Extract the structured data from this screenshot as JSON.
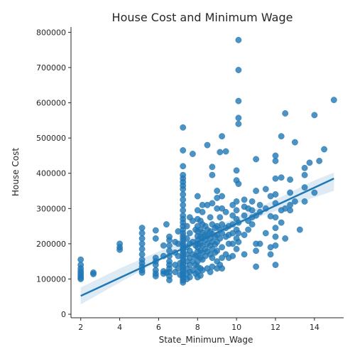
{
  "chart_data": {
    "type": "scatter",
    "title": "House Cost and Minimum Wage",
    "xlabel": "State_Minimum_Wage",
    "ylabel": "House Cost",
    "xlim": [
      1.5,
      15.5
    ],
    "ylim": [
      -10000,
      815000
    ],
    "xticks": [
      2,
      4,
      6,
      8,
      10,
      12,
      14
    ],
    "yticks": [
      0,
      100000,
      200000,
      300000,
      400000,
      500000,
      600000,
      700000,
      800000
    ],
    "grid": false,
    "legend": "none",
    "point_color": "#1f77b4",
    "regression_line": {
      "x": [
        2,
        15
      ],
      "y": [
        52000,
        385000
      ]
    },
    "confidence_band": {
      "x": [
        2,
        4,
        6,
        8,
        10,
        12,
        14,
        15
      ],
      "lower": [
        28000,
        90000,
        150000,
        207000,
        252000,
        293000,
        332000,
        350000
      ],
      "upper": [
        76000,
        130000,
        178000,
        226000,
        275000,
        325000,
        380000,
        402000
      ]
    },
    "points": [
      {
        "x": 2,
        "y": 155000
      },
      {
        "x": 2,
        "y": 140000
      },
      {
        "x": 2,
        "y": 130000
      },
      {
        "x": 2,
        "y": 122000
      },
      {
        "x": 2,
        "y": 116000
      },
      {
        "x": 2,
        "y": 110000
      },
      {
        "x": 2,
        "y": 104000
      },
      {
        "x": 2,
        "y": 100000
      },
      {
        "x": 2.65,
        "y": 118000
      },
      {
        "x": 2.65,
        "y": 114000
      },
      {
        "x": 4,
        "y": 200000
      },
      {
        "x": 4,
        "y": 190000
      },
      {
        "x": 4,
        "y": 183000
      },
      {
        "x": 5.15,
        "y": 245000
      },
      {
        "x": 5.15,
        "y": 230000
      },
      {
        "x": 5.15,
        "y": 215000
      },
      {
        "x": 5.15,
        "y": 200000
      },
      {
        "x": 5.15,
        "y": 185000
      },
      {
        "x": 5.15,
        "y": 170000
      },
      {
        "x": 5.15,
        "y": 155000
      },
      {
        "x": 5.15,
        "y": 145000
      },
      {
        "x": 5.15,
        "y": 135000
      },
      {
        "x": 5.15,
        "y": 125000
      },
      {
        "x": 5.15,
        "y": 118000
      },
      {
        "x": 5.85,
        "y": 238000
      },
      {
        "x": 5.85,
        "y": 215000
      },
      {
        "x": 5.85,
        "y": 160000
      },
      {
        "x": 5.85,
        "y": 150000
      },
      {
        "x": 5.85,
        "y": 140000
      },
      {
        "x": 5.85,
        "y": 125000
      },
      {
        "x": 5.85,
        "y": 115000
      },
      {
        "x": 5.85,
        "y": 108000
      },
      {
        "x": 6.25,
        "y": 195000
      },
      {
        "x": 6.25,
        "y": 165000
      },
      {
        "x": 6.25,
        "y": 122000
      },
      {
        "x": 6.25,
        "y": 115000
      },
      {
        "x": 6.4,
        "y": 255000
      },
      {
        "x": 6.4,
        "y": 118000
      },
      {
        "x": 6.55,
        "y": 220000
      },
      {
        "x": 6.55,
        "y": 210000
      },
      {
        "x": 6.55,
        "y": 195000
      },
      {
        "x": 6.55,
        "y": 180000
      },
      {
        "x": 6.55,
        "y": 165000
      },
      {
        "x": 6.55,
        "y": 150000
      },
      {
        "x": 6.55,
        "y": 140000
      },
      {
        "x": 6.55,
        "y": 130000
      },
      {
        "x": 6.55,
        "y": 120000
      },
      {
        "x": 6.55,
        "y": 108000
      },
      {
        "x": 6.55,
        "y": 97000
      },
      {
        "x": 6.85,
        "y": 205000
      },
      {
        "x": 6.85,
        "y": 175000
      },
      {
        "x": 6.85,
        "y": 140000
      },
      {
        "x": 6.85,
        "y": 120000
      },
      {
        "x": 7.0,
        "y": 235000
      },
      {
        "x": 7.0,
        "y": 200000
      },
      {
        "x": 7.0,
        "y": 165000
      },
      {
        "x": 7.0,
        "y": 130000
      },
      {
        "x": 7.1,
        "y": 145000
      },
      {
        "x": 7.1,
        "y": 112000
      },
      {
        "x": 7.25,
        "y": 530000
      },
      {
        "x": 7.25,
        "y": 465000
      },
      {
        "x": 7.25,
        "y": 420000
      },
      {
        "x": 7.25,
        "y": 395000
      },
      {
        "x": 7.25,
        "y": 385000
      },
      {
        "x": 7.25,
        "y": 375000
      },
      {
        "x": 7.25,
        "y": 365000
      },
      {
        "x": 7.25,
        "y": 355000
      },
      {
        "x": 7.25,
        "y": 340000
      },
      {
        "x": 7.25,
        "y": 325000
      },
      {
        "x": 7.25,
        "y": 310000
      },
      {
        "x": 7.25,
        "y": 295000
      },
      {
        "x": 7.25,
        "y": 280000
      },
      {
        "x": 7.25,
        "y": 270000
      },
      {
        "x": 7.25,
        "y": 260000
      },
      {
        "x": 7.25,
        "y": 250000
      },
      {
        "x": 7.25,
        "y": 240000
      },
      {
        "x": 7.25,
        "y": 230000
      },
      {
        "x": 7.25,
        "y": 222000
      },
      {
        "x": 7.25,
        "y": 215000
      },
      {
        "x": 7.25,
        "y": 208000
      },
      {
        "x": 7.25,
        "y": 200000
      },
      {
        "x": 7.25,
        "y": 193000
      },
      {
        "x": 7.25,
        "y": 186000
      },
      {
        "x": 7.25,
        "y": 180000
      },
      {
        "x": 7.25,
        "y": 173000
      },
      {
        "x": 7.25,
        "y": 166000
      },
      {
        "x": 7.25,
        "y": 160000
      },
      {
        "x": 7.25,
        "y": 153000
      },
      {
        "x": 7.25,
        "y": 146000
      },
      {
        "x": 7.25,
        "y": 140000
      },
      {
        "x": 7.25,
        "y": 133000
      },
      {
        "x": 7.25,
        "y": 126000
      },
      {
        "x": 7.25,
        "y": 120000
      },
      {
        "x": 7.25,
        "y": 114000
      },
      {
        "x": 7.25,
        "y": 108000
      },
      {
        "x": 7.25,
        "y": 102000
      },
      {
        "x": 7.25,
        "y": 96000
      },
      {
        "x": 7.25,
        "y": 90000
      },
      {
        "x": 7.45,
        "y": 250000
      },
      {
        "x": 7.45,
        "y": 215000
      },
      {
        "x": 7.45,
        "y": 190000
      },
      {
        "x": 7.45,
        "y": 170000
      },
      {
        "x": 7.45,
        "y": 150000
      },
      {
        "x": 7.45,
        "y": 130000
      },
      {
        "x": 7.45,
        "y": 115000
      },
      {
        "x": 7.45,
        "y": 100000
      },
      {
        "x": 7.6,
        "y": 275000
      },
      {
        "x": 7.6,
        "y": 230000
      },
      {
        "x": 7.6,
        "y": 200000
      },
      {
        "x": 7.6,
        "y": 180000
      },
      {
        "x": 7.6,
        "y": 160000
      },
      {
        "x": 7.6,
        "y": 140000
      },
      {
        "x": 7.6,
        "y": 120000
      },
      {
        "x": 7.6,
        "y": 105000
      },
      {
        "x": 7.75,
        "y": 455000
      },
      {
        "x": 7.75,
        "y": 265000
      },
      {
        "x": 7.75,
        "y": 205000
      },
      {
        "x": 7.75,
        "y": 170000
      },
      {
        "x": 7.75,
        "y": 150000
      },
      {
        "x": 7.75,
        "y": 125000
      },
      {
        "x": 7.9,
        "y": 240000
      },
      {
        "x": 7.9,
        "y": 195000
      },
      {
        "x": 7.9,
        "y": 165000
      },
      {
        "x": 7.9,
        "y": 140000
      },
      {
        "x": 7.9,
        "y": 115000
      },
      {
        "x": 8.0,
        "y": 335000
      },
      {
        "x": 8.0,
        "y": 295000
      },
      {
        "x": 8.0,
        "y": 270000
      },
      {
        "x": 8.0,
        "y": 250000
      },
      {
        "x": 8.0,
        "y": 235000
      },
      {
        "x": 8.0,
        "y": 222000
      },
      {
        "x": 8.0,
        "y": 210000
      },
      {
        "x": 8.0,
        "y": 200000
      },
      {
        "x": 8.0,
        "y": 190000
      },
      {
        "x": 8.0,
        "y": 178000
      },
      {
        "x": 8.0,
        "y": 165000
      },
      {
        "x": 8.0,
        "y": 150000
      },
      {
        "x": 8.0,
        "y": 135000
      },
      {
        "x": 8.0,
        "y": 120000
      },
      {
        "x": 8.0,
        "y": 105000
      },
      {
        "x": 8.15,
        "y": 265000
      },
      {
        "x": 8.15,
        "y": 240000
      },
      {
        "x": 8.15,
        "y": 220000
      },
      {
        "x": 8.15,
        "y": 200000
      },
      {
        "x": 8.15,
        "y": 180000
      },
      {
        "x": 8.15,
        "y": 160000
      },
      {
        "x": 8.15,
        "y": 130000
      },
      {
        "x": 8.15,
        "y": 110000
      },
      {
        "x": 8.25,
        "y": 310000
      },
      {
        "x": 8.25,
        "y": 290000
      },
      {
        "x": 8.25,
        "y": 255000
      },
      {
        "x": 8.25,
        "y": 232000
      },
      {
        "x": 8.25,
        "y": 215000
      },
      {
        "x": 8.25,
        "y": 195000
      },
      {
        "x": 8.25,
        "y": 175000
      },
      {
        "x": 8.25,
        "y": 155000
      },
      {
        "x": 8.25,
        "y": 125000
      },
      {
        "x": 8.4,
        "y": 250000
      },
      {
        "x": 8.4,
        "y": 225000
      },
      {
        "x": 8.4,
        "y": 210000
      },
      {
        "x": 8.4,
        "y": 185000
      },
      {
        "x": 8.4,
        "y": 165000
      },
      {
        "x": 8.5,
        "y": 480000
      },
      {
        "x": 8.5,
        "y": 310000
      },
      {
        "x": 8.5,
        "y": 240000
      },
      {
        "x": 8.5,
        "y": 222000
      },
      {
        "x": 8.5,
        "y": 200000
      },
      {
        "x": 8.5,
        "y": 178000
      },
      {
        "x": 8.5,
        "y": 130000
      },
      {
        "x": 8.65,
        "y": 275000
      },
      {
        "x": 8.65,
        "y": 235000
      },
      {
        "x": 8.65,
        "y": 215000
      },
      {
        "x": 8.65,
        "y": 195000
      },
      {
        "x": 8.65,
        "y": 170000
      },
      {
        "x": 8.65,
        "y": 120000
      },
      {
        "x": 8.75,
        "y": 418000
      },
      {
        "x": 8.75,
        "y": 395000
      },
      {
        "x": 8.75,
        "y": 315000
      },
      {
        "x": 8.75,
        "y": 255000
      },
      {
        "x": 8.75,
        "y": 228000
      },
      {
        "x": 8.75,
        "y": 205000
      },
      {
        "x": 8.75,
        "y": 185000
      },
      {
        "x": 8.75,
        "y": 160000
      },
      {
        "x": 8.75,
        "y": 135000
      },
      {
        "x": 8.9,
        "y": 245000
      },
      {
        "x": 8.9,
        "y": 220000
      },
      {
        "x": 8.9,
        "y": 198000
      },
      {
        "x": 8.9,
        "y": 175000
      },
      {
        "x": 9.0,
        "y": 350000
      },
      {
        "x": 9.0,
        "y": 330000
      },
      {
        "x": 9.0,
        "y": 300000
      },
      {
        "x": 9.0,
        "y": 250000
      },
      {
        "x": 9.0,
        "y": 225000
      },
      {
        "x": 9.0,
        "y": 205000
      },
      {
        "x": 9.0,
        "y": 180000
      },
      {
        "x": 9.0,
        "y": 150000
      },
      {
        "x": 9.0,
        "y": 130000
      },
      {
        "x": 9.15,
        "y": 460000
      },
      {
        "x": 9.15,
        "y": 275000
      },
      {
        "x": 9.15,
        "y": 240000
      },
      {
        "x": 9.15,
        "y": 215000
      },
      {
        "x": 9.15,
        "y": 140000
      },
      {
        "x": 9.25,
        "y": 505000
      },
      {
        "x": 9.25,
        "y": 335000
      },
      {
        "x": 9.25,
        "y": 300000
      },
      {
        "x": 9.25,
        "y": 255000
      },
      {
        "x": 9.25,
        "y": 230000
      },
      {
        "x": 9.25,
        "y": 190000
      },
      {
        "x": 9.25,
        "y": 160000
      },
      {
        "x": 9.25,
        "y": 130000
      },
      {
        "x": 9.45,
        "y": 462000
      },
      {
        "x": 9.45,
        "y": 290000
      },
      {
        "x": 9.45,
        "y": 245000
      },
      {
        "x": 9.45,
        "y": 220000
      },
      {
        "x": 9.45,
        "y": 170000
      },
      {
        "x": 9.6,
        "y": 250000
      },
      {
        "x": 9.6,
        "y": 225000
      },
      {
        "x": 9.6,
        "y": 200000
      },
      {
        "x": 9.6,
        "y": 160000
      },
      {
        "x": 9.8,
        "y": 310000
      },
      {
        "x": 9.8,
        "y": 280000
      },
      {
        "x": 9.8,
        "y": 255000
      },
      {
        "x": 9.8,
        "y": 230000
      },
      {
        "x": 9.8,
        "y": 200000
      },
      {
        "x": 9.8,
        "y": 165000
      },
      {
        "x": 10.0,
        "y": 408000
      },
      {
        "x": 10.0,
        "y": 380000
      },
      {
        "x": 10.0,
        "y": 320000
      },
      {
        "x": 10.0,
        "y": 295000
      },
      {
        "x": 10.0,
        "y": 270000
      },
      {
        "x": 10.0,
        "y": 240000
      },
      {
        "x": 10.0,
        "y": 215000
      },
      {
        "x": 10.0,
        "y": 185000
      },
      {
        "x": 10.1,
        "y": 778000
      },
      {
        "x": 10.1,
        "y": 693000
      },
      {
        "x": 10.1,
        "y": 605000
      },
      {
        "x": 10.1,
        "y": 557000
      },
      {
        "x": 10.1,
        "y": 540000
      },
      {
        "x": 10.1,
        "y": 370000
      },
      {
        "x": 10.1,
        "y": 260000
      },
      {
        "x": 10.1,
        "y": 230000
      },
      {
        "x": 10.1,
        "y": 205000
      },
      {
        "x": 10.4,
        "y": 325000
      },
      {
        "x": 10.4,
        "y": 305000
      },
      {
        "x": 10.4,
        "y": 280000
      },
      {
        "x": 10.4,
        "y": 225000
      },
      {
        "x": 10.4,
        "y": 170000
      },
      {
        "x": 10.6,
        "y": 300000
      },
      {
        "x": 10.6,
        "y": 265000
      },
      {
        "x": 10.6,
        "y": 240000
      },
      {
        "x": 10.8,
        "y": 320000
      },
      {
        "x": 10.8,
        "y": 295000
      },
      {
        "x": 10.8,
        "y": 275000
      },
      {
        "x": 10.8,
        "y": 255000
      },
      {
        "x": 11.0,
        "y": 440000
      },
      {
        "x": 11.0,
        "y": 350000
      },
      {
        "x": 11.0,
        "y": 280000
      },
      {
        "x": 11.0,
        "y": 200000
      },
      {
        "x": 11.0,
        "y": 180000
      },
      {
        "x": 11.0,
        "y": 135000
      },
      {
        "x": 11.2,
        "y": 310000
      },
      {
        "x": 11.2,
        "y": 290000
      },
      {
        "x": 11.2,
        "y": 200000
      },
      {
        "x": 11.5,
        "y": 355000
      },
      {
        "x": 11.5,
        "y": 300000
      },
      {
        "x": 11.5,
        "y": 230000
      },
      {
        "x": 11.75,
        "y": 335000
      },
      {
        "x": 11.75,
        "y": 278000
      },
      {
        "x": 11.75,
        "y": 190000
      },
      {
        "x": 11.75,
        "y": 170000
      },
      {
        "x": 12.0,
        "y": 450000
      },
      {
        "x": 12.0,
        "y": 435000
      },
      {
        "x": 12.0,
        "y": 385000
      },
      {
        "x": 12.0,
        "y": 340000
      },
      {
        "x": 12.0,
        "y": 315000
      },
      {
        "x": 12.0,
        "y": 275000
      },
      {
        "x": 12.0,
        "y": 245000
      },
      {
        "x": 12.0,
        "y": 220000
      },
      {
        "x": 12.0,
        "y": 195000
      },
      {
        "x": 12.0,
        "y": 140000
      },
      {
        "x": 12.3,
        "y": 505000
      },
      {
        "x": 12.3,
        "y": 388000
      },
      {
        "x": 12.3,
        "y": 295000
      },
      {
        "x": 12.3,
        "y": 260000
      },
      {
        "x": 12.5,
        "y": 570000
      },
      {
        "x": 12.5,
        "y": 300000
      },
      {
        "x": 12.5,
        "y": 215000
      },
      {
        "x": 12.75,
        "y": 382000
      },
      {
        "x": 12.75,
        "y": 345000
      },
      {
        "x": 12.75,
        "y": 310000
      },
      {
        "x": 12.75,
        "y": 295000
      },
      {
        "x": 13.0,
        "y": 488000
      },
      {
        "x": 13.0,
        "y": 320000
      },
      {
        "x": 13.25,
        "y": 240000
      },
      {
        "x": 13.5,
        "y": 415000
      },
      {
        "x": 13.5,
        "y": 395000
      },
      {
        "x": 13.5,
        "y": 360000
      },
      {
        "x": 13.5,
        "y": 320000
      },
      {
        "x": 13.75,
        "y": 430000
      },
      {
        "x": 14.0,
        "y": 565000
      },
      {
        "x": 14.0,
        "y": 345000
      },
      {
        "x": 14.25,
        "y": 435000
      },
      {
        "x": 14.5,
        "y": 468000
      },
      {
        "x": 15.0,
        "y": 608000
      }
    ]
  }
}
